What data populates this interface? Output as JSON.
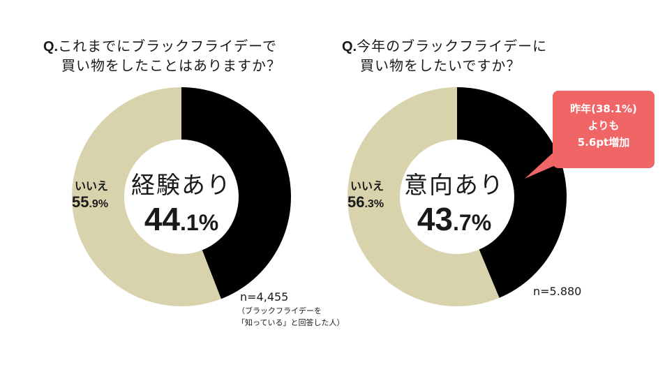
{
  "colors": {
    "yes": "#000000",
    "no": "#d9d3ad",
    "callout": "#f06565",
    "hole": "#ffffff"
  },
  "chart_data": [
    {
      "type": "pie",
      "variant": "donut",
      "question_prefix": "Q.",
      "question_line1": "これまでにブラックフライデーで",
      "question_line2": "買い物をしたことはありますか？",
      "slices": [
        {
          "label": "経験あり",
          "value": 44.1
        },
        {
          "label": "いいえ",
          "value": 55.9
        }
      ],
      "center_title": "経験あり",
      "center_value_int": "44",
      "center_value_dec": ".1%",
      "no_label": "いいえ",
      "no_value_int": "55",
      "no_value_dec": ".9%",
      "n_label": "n=4,455",
      "note_line1": "（ブラックフライデーを",
      "note_line2": "「知っている」と回答した人）"
    },
    {
      "type": "pie",
      "variant": "donut",
      "question_prefix": "Q.",
      "question_line1": "今年のブラックフライデーに",
      "question_line2": "買い物をしたいですか？",
      "slices": [
        {
          "label": "意向あり",
          "value": 43.7
        },
        {
          "label": "いいえ",
          "value": 56.3
        }
      ],
      "center_title": "意向あり",
      "center_value_int": "43",
      "center_value_dec": ".7%",
      "no_label": "いいえ",
      "no_value_int": "56",
      "no_value_dec": ".3%",
      "n_label": "n=5.880",
      "callout_line1": "昨年(38.1%)",
      "callout_line2": "よりも",
      "callout_line3": "5.6pt増加"
    }
  ]
}
